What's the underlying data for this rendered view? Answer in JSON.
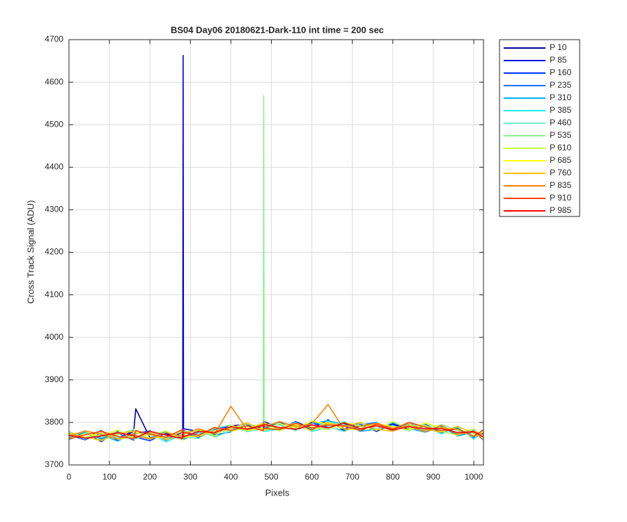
{
  "chart_data": {
    "type": "line",
    "title": "BS04 Day06 20180621-Dark-110 int time = 200 sec",
    "xlabel": "Pixels",
    "ylabel": "Cross Track Signal (ADU)",
    "xlim": [
      0,
      1024
    ],
    "ylim": [
      3700,
      4700
    ],
    "xticks": [
      0,
      100,
      200,
      300,
      400,
      500,
      600,
      700,
      800,
      900,
      1000
    ],
    "yticks": [
      3700,
      3800,
      3900,
      4000,
      4100,
      4200,
      4300,
      4400,
      4500,
      4600,
      4700
    ],
    "grid": true,
    "legend": "outside-right-top",
    "x": [
      0,
      40,
      80,
      120,
      160,
      165,
      200,
      240,
      280,
      281,
      282,
      283,
      320,
      360,
      400,
      440,
      480,
      481,
      482,
      520,
      560,
      600,
      640,
      680,
      720,
      760,
      800,
      840,
      880,
      920,
      960,
      1000,
      1023
    ],
    "series": [
      {
        "name": "P 10",
        "color": "#00009f",
        "values": [
          3775,
          3762,
          3781,
          3758,
          3779,
          3832,
          3764,
          3773,
          3760,
          3776,
          3769,
          3781,
          3765,
          3785,
          3791,
          3779,
          3797,
          3783,
          3802,
          3786,
          3799,
          3783,
          3806,
          3781,
          3795,
          3779,
          3797,
          3784,
          3795,
          3777,
          3786,
          3765,
          3776
        ]
      },
      {
        "name": "P 85",
        "color": "#0000e6",
        "values": [
          3760,
          3778,
          3755,
          3779,
          3762,
          3774,
          3780,
          3758,
          3777,
          3781,
          4663,
          3785,
          3779,
          3770,
          3792,
          3795,
          3782,
          3798,
          3784,
          3801,
          3781,
          3799,
          3787,
          3797,
          3780,
          3798,
          3781,
          3799,
          3778,
          3792,
          3771,
          3780,
          3759
        ]
      },
      {
        "name": "P 160",
        "color": "#0033ff",
        "values": [
          3771,
          3759,
          3776,
          3762,
          3781,
          3765,
          3757,
          3775,
          3763,
          3766,
          3774,
          3762,
          3780,
          3770,
          3778,
          3797,
          3785,
          3781,
          3796,
          3783,
          3802,
          3786,
          3796,
          3785,
          3799,
          3782,
          3795,
          3781,
          3793,
          3776,
          3786,
          3763,
          3775
        ]
      },
      {
        "name": "P 235",
        "color": "#0073ff",
        "values": [
          3764,
          3777,
          3761,
          3775,
          3758,
          3773,
          3779,
          3762,
          3778,
          3772,
          3765,
          3778,
          3764,
          3784,
          3790,
          3780,
          3796,
          3797,
          3784,
          3800,
          3782,
          3801,
          3789,
          3781,
          3794,
          3800,
          3779,
          3797,
          3780,
          3791,
          3772,
          3779,
          3762
        ]
      },
      {
        "name": "P 310",
        "color": "#00b3ff",
        "values": [
          3778,
          3763,
          3771,
          3756,
          3774,
          3768,
          3762,
          3779,
          3759,
          3767,
          3778,
          3760,
          3776,
          3772,
          3787,
          3783,
          3799,
          3782,
          3788,
          3795,
          3784,
          3797,
          3804,
          3795,
          3779,
          3784,
          3799,
          3786,
          3777,
          3790,
          3768,
          3777,
          3771
        ]
      },
      {
        "name": "P 385",
        "color": "#19f0f0",
        "values": [
          3759,
          3775,
          3764,
          3778,
          3766,
          3761,
          3775,
          3754,
          3772,
          3778,
          3763,
          3775,
          3781,
          3766,
          3780,
          3797,
          3781,
          3796,
          3779,
          3784,
          3800,
          3779,
          3788,
          3802,
          3782,
          3797,
          3781,
          3794,
          3792,
          3773,
          3789,
          3761,
          3780
        ]
      },
      {
        "name": "P 460",
        "color": "#70f0c8",
        "values": [
          3772,
          3761,
          3780,
          3763,
          3772,
          3779,
          3760,
          3777,
          3765,
          3762,
          3777,
          3766,
          3762,
          3786,
          3794,
          3778,
          3785,
          3799,
          3794,
          3798,
          3780,
          3804,
          3791,
          3778,
          3798,
          3784,
          3792,
          3780,
          3797,
          3786,
          3775,
          3784,
          3763
        ]
      },
      {
        "name": "P 535",
        "color": "#8cf08c",
        "values": [
          3766,
          3779,
          3757,
          3771,
          3784,
          3761,
          3778,
          3762,
          3781,
          3774,
          3760,
          3779,
          3778,
          3775,
          3782,
          3796,
          3789,
          4568,
          3781,
          3786,
          3799,
          3785,
          3801,
          3794,
          3785,
          3799,
          3786,
          3798,
          3779,
          3795,
          3781,
          3766,
          3777
        ]
      },
      {
        "name": "P 610",
        "color": "#c6ff39",
        "values": [
          3777,
          3764,
          3776,
          3760,
          3766,
          3775,
          3770,
          3780,
          3758,
          3769,
          3781,
          3764,
          3770,
          3789,
          3779,
          3787,
          3798,
          3786,
          3800,
          3780,
          3796,
          3789,
          3783,
          3800,
          3792,
          3781,
          3802,
          3785,
          3793,
          3779,
          3770,
          3785,
          3760
        ]
      },
      {
        "name": "P 685",
        "color": "#ffff00",
        "values": [
          3762,
          3773,
          3768,
          3782,
          3761,
          3778,
          3763,
          3766,
          3779,
          3762,
          3771,
          3774,
          3783,
          3768,
          3793,
          3781,
          3787,
          3795,
          3782,
          3797,
          3786,
          3803,
          3796,
          3785,
          3782,
          3797,
          3790,
          3782,
          3799,
          3787,
          3784,
          3768,
          3778
        ]
      },
      {
        "name": "P 760",
        "color": "#ffc000",
        "values": [
          3774,
          3765,
          3758,
          3774,
          3779,
          3764,
          3777,
          3759,
          3772,
          3778,
          3766,
          3769,
          3767,
          3781,
          3786,
          3799,
          3781,
          3790,
          3797,
          3786,
          3793,
          3781,
          3799,
          3790,
          3800,
          3784,
          3779,
          3795,
          3784,
          3777,
          3791,
          3774,
          3764
        ]
      },
      {
        "name": "P 835",
        "color": "#ff8000",
        "values": [
          3768,
          3780,
          3772,
          3761,
          3773,
          3769,
          3761,
          3776,
          3767,
          3761,
          3780,
          3772,
          3785,
          3773,
          3838,
          3783,
          3796,
          3784,
          3789,
          3802,
          3790,
          3797,
          3842,
          3783,
          3791,
          3798,
          3786,
          3791,
          3778,
          3793,
          3772,
          3779,
          3771
        ]
      },
      {
        "name": "P 910",
        "color": "#ff4000",
        "values": [
          3761,
          3771,
          3779,
          3767,
          3762,
          3781,
          3772,
          3765,
          3783,
          3771,
          3764,
          3777,
          3770,
          3788,
          3781,
          3792,
          3780,
          3801,
          3786,
          3783,
          3798,
          3787,
          3794,
          3792,
          3781,
          3796,
          3784,
          3800,
          3789,
          3781,
          3785,
          3767,
          3782
        ]
      },
      {
        "name": "P 985",
        "color": "#ff0000",
        "values": [
          3770,
          3763,
          3768,
          3776,
          3769,
          3764,
          3779,
          3770,
          3762,
          3780,
          3773,
          3766,
          3779,
          3776,
          3790,
          3784,
          3793,
          3786,
          3795,
          3788,
          3784,
          3794,
          3787,
          3799,
          3785,
          3792,
          3782,
          3790,
          3785,
          3786,
          3776,
          3778,
          3766
        ]
      }
    ]
  }
}
